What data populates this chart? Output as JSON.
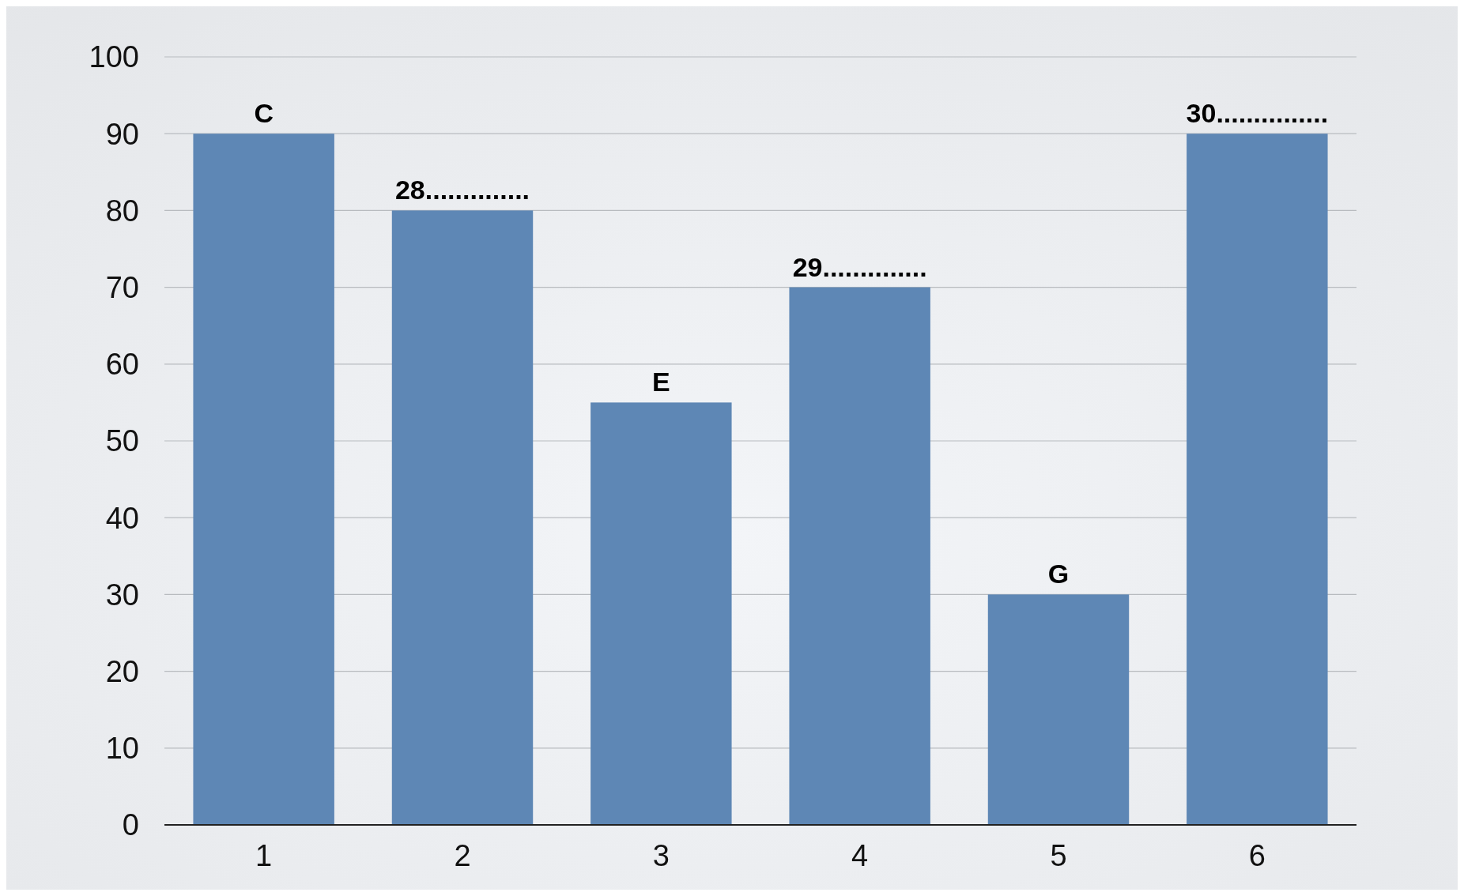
{
  "chart_data": {
    "type": "bar",
    "categories": [
      "1",
      "2",
      "3",
      "4",
      "5",
      "6"
    ],
    "values": [
      90,
      80,
      55,
      70,
      30,
      90
    ],
    "color": "#5e87b5",
    "value_labels": [
      "C",
      "28..............",
      "E",
      "29..............",
      "G",
      "30..............."
    ],
    "ylim": [
      0,
      100
    ],
    "yticks": [
      0,
      10,
      20,
      30,
      40,
      50,
      60,
      70,
      80,
      90,
      100
    ],
    "grid": "y"
  }
}
